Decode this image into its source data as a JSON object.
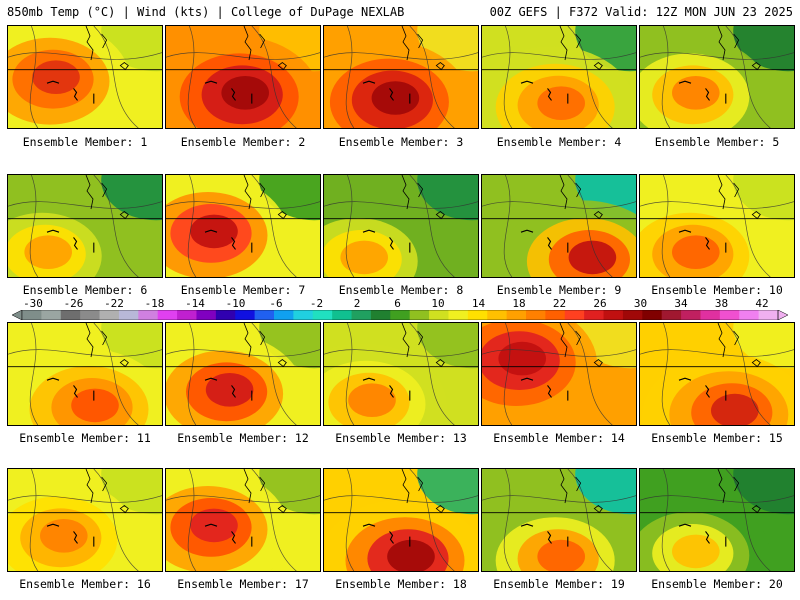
{
  "header": {
    "title_left": "850mb Temp (°C) | Wind (kts) | College of DuPage NEXLAB",
    "title_right": "00Z GEFS | F372 Valid: 12Z MON JUN 23 2025"
  },
  "colorbar": {
    "tick_labels": [
      "-30",
      "-26",
      "-22",
      "-18",
      "-14",
      "-10",
      "-6",
      "-2",
      "2",
      "6",
      "10",
      "14",
      "18",
      "22",
      "26",
      "30",
      "34",
      "38",
      "42"
    ],
    "colors": [
      "#7f8e8a",
      "#9aa6a2",
      "#6e6e6e",
      "#8b8b8b",
      "#b0b0b0",
      "#b8b8d8",
      "#d080e0",
      "#e040f0",
      "#c020d0",
      "#8000c0",
      "#3000b0",
      "#1010e0",
      "#2060f0",
      "#10a0f0",
      "#20d0e0",
      "#20e0c0",
      "#10c090",
      "#20a060",
      "#208030",
      "#40a020",
      "#90c020",
      "#d0e020",
      "#f0f020",
      "#ffe000",
      "#ffc000",
      "#ffa000",
      "#ff8000",
      "#ff6000",
      "#ff4020",
      "#e02020",
      "#c01010",
      "#a00808",
      "#800000",
      "#a01830",
      "#c02060",
      "#e030a0",
      "#f050d0",
      "#f080f0",
      "#f0b0f0"
    ]
  },
  "members": [
    {
      "label": "Ensemble Member: 1",
      "palette": [
        "#e03010",
        "#ff6a00",
        "#ffa000",
        "#f0f020",
        "#c8e020"
      ]
    },
    {
      "label": "Ensemble Member: 2",
      "palette": [
        "#a00808",
        "#d01818",
        "#ff5000",
        "#ff9000",
        "#ffc000"
      ]
    },
    {
      "label": "Ensemble Member: 3",
      "palette": [
        "#a00808",
        "#d82010",
        "#ff5a00",
        "#ffa000",
        "#f0e020"
      ]
    },
    {
      "label": "Ensemble Member: 4",
      "palette": [
        "#ff6a00",
        "#ffa000",
        "#ffd000",
        "#d0e020",
        "#30a040"
      ]
    },
    {
      "label": "Ensemble Member: 5",
      "palette": [
        "#ff8000",
        "#ffc000",
        "#f0f020",
        "#90c020",
        "#208030"
      ]
    },
    {
      "label": "Ensemble Member: 6",
      "palette": [
        "#ffa000",
        "#ffe000",
        "#d0e020",
        "#90c020",
        "#209040"
      ]
    },
    {
      "label": "Ensemble Member: 7",
      "palette": [
        "#c01010",
        "#ff4020",
        "#ff9000",
        "#f0f020",
        "#40a020"
      ]
    },
    {
      "label": "Ensemble Member: 8",
      "palette": [
        "#ffa000",
        "#ffe000",
        "#d0e020",
        "#70b020",
        "#209040"
      ]
    },
    {
      "label": "Ensemble Member: 9",
      "palette": [
        "#c01010",
        "#ff6000",
        "#ffc000",
        "#90c020",
        "#10c0a0"
      ]
    },
    {
      "label": "Ensemble Member: 10",
      "palette": [
        "#ff6000",
        "#ffa000",
        "#ffd000",
        "#f0f020",
        "#c8e020"
      ]
    },
    {
      "label": "Ensemble Member: 11",
      "palette": [
        "#ff5000",
        "#ff9000",
        "#ffc000",
        "#f0f020",
        "#c8e020"
      ]
    },
    {
      "label": "Ensemble Member: 12",
      "palette": [
        "#d01818",
        "#ff5000",
        "#ffa000",
        "#f0f020",
        "#90c020"
      ]
    },
    {
      "label": "Ensemble Member: 13",
      "palette": [
        "#ff8000",
        "#ffc000",
        "#f0f020",
        "#d0e020",
        "#90c020"
      ]
    },
    {
      "label": "Ensemble Member: 14",
      "palette": [
        "#c01010",
        "#e02020",
        "#ff6000",
        "#ffa000",
        "#f0e020"
      ]
    },
    {
      "label": "Ensemble Member: 15",
      "palette": [
        "#d02010",
        "#ff6000",
        "#ffa000",
        "#ffd000",
        "#f0f020"
      ]
    },
    {
      "label": "Ensemble Member: 16",
      "palette": [
        "#ff8000",
        "#ffb000",
        "#ffe000",
        "#f0f020",
        "#c8e020"
      ]
    },
    {
      "label": "Ensemble Member: 17",
      "palette": [
        "#e02020",
        "#ff5000",
        "#ffa000",
        "#f0f020",
        "#90c020"
      ]
    },
    {
      "label": "Ensemble Member: 18",
      "palette": [
        "#a00808",
        "#e02020",
        "#ff8000",
        "#ffd000",
        "#30b060"
      ]
    },
    {
      "label": "Ensemble Member: 19",
      "palette": [
        "#ff6000",
        "#ffa000",
        "#f0f020",
        "#90c020",
        "#10c0a0"
      ]
    },
    {
      "label": "Ensemble Member: 20",
      "palette": [
        "#ffc000",
        "#f0f020",
        "#90c020",
        "#40a020",
        "#208030"
      ]
    }
  ]
}
